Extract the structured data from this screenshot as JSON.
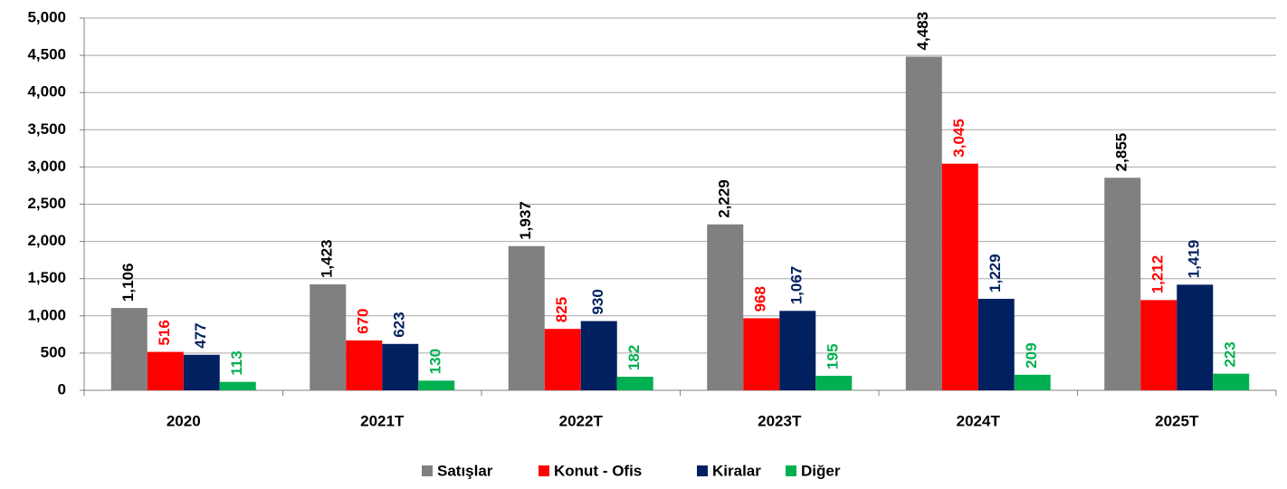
{
  "chart_data": {
    "type": "bar",
    "categories": [
      "2020",
      "2021T",
      "2022T",
      "2023T",
      "2024T",
      "2025T"
    ],
    "series": [
      {
        "name": "Satışlar",
        "color": "#808080",
        "label_color": "#000000",
        "values": [
          1106,
          1423,
          1937,
          2229,
          4483,
          2855
        ],
        "value_labels": [
          "1,106",
          "1,423",
          "1,937",
          "2,229",
          "4,483",
          "2,855"
        ]
      },
      {
        "name": "Konut - Ofis",
        "color": "#ff0000",
        "label_color": "#ff0000",
        "values": [
          516,
          670,
          825,
          968,
          3045,
          1212
        ],
        "value_labels": [
          "516",
          "670",
          "825",
          "968",
          "3,045",
          "1,212"
        ]
      },
      {
        "name": "Kiralar",
        "color": "#002060",
        "label_color": "#002060",
        "values": [
          477,
          623,
          930,
          1067,
          1229,
          1419
        ],
        "value_labels": [
          "477",
          "623",
          "930",
          "1,067",
          "1,229",
          "1,419"
        ]
      },
      {
        "name": "Diğer",
        "color": "#00b050",
        "label_color": "#00b050",
        "values": [
          113,
          130,
          182,
          195,
          209,
          223
        ],
        "value_labels": [
          "113",
          "130",
          "182",
          "195",
          "209",
          "223"
        ]
      }
    ],
    "ylim": [
      0,
      5000
    ],
    "yticks": [
      0,
      500,
      {
        "value": 1000,
        "label": "1,000"
      },
      {
        "value": 1500,
        "label": "1,500"
      },
      {
        "value": 2000,
        "label": "2,000"
      },
      {
        "value": 2500,
        "label": "2,500"
      },
      {
        "value": 3000,
        "label": "3,000"
      },
      {
        "value": 3500,
        "label": "3,500"
      },
      {
        "value": 4000,
        "label": "4,000"
      },
      {
        "value": 4500,
        "label": "4,500"
      },
      {
        "value": 5000,
        "label": "5,000"
      }
    ],
    "grid": true,
    "legend": "bottom"
  }
}
